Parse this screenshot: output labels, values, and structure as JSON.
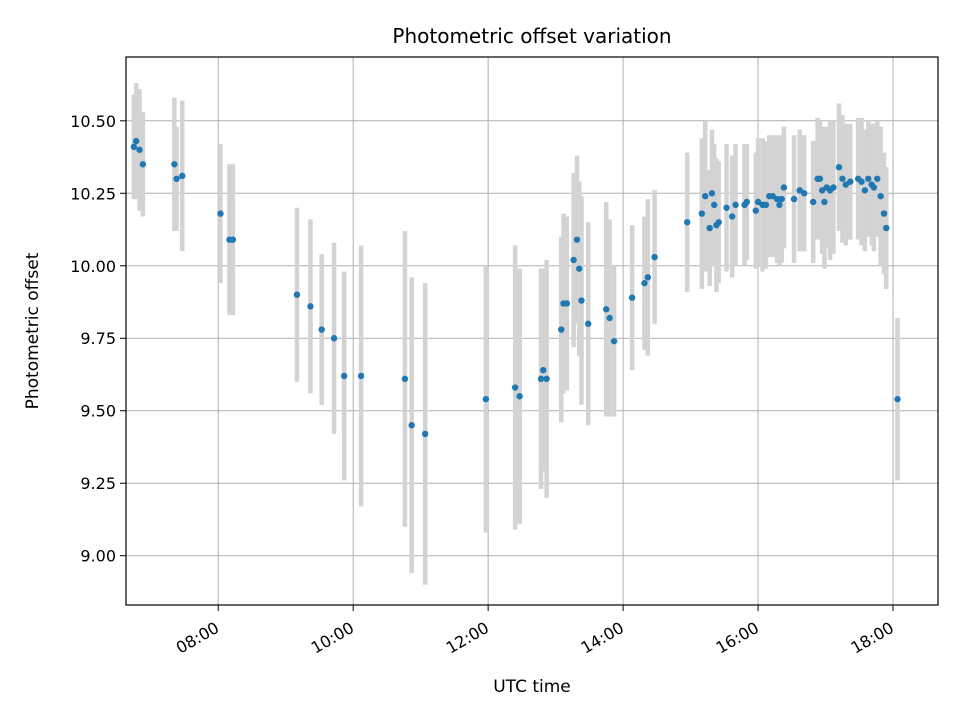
{
  "chart_data": {
    "type": "scatter",
    "title": "Photometric offset variation",
    "xlabel": "UTC time",
    "ylabel": "Photometric offset",
    "xlim": [
      "06:38",
      "18:40"
    ],
    "ylim": [
      8.83,
      10.72
    ],
    "x_ticks": [
      "08:00",
      "10:00",
      "12:00",
      "14:00",
      "16:00",
      "18:00"
    ],
    "y_ticks": [
      "9.00",
      "9.25",
      "9.50",
      "9.75",
      "10.00",
      "10.25",
      "10.50"
    ],
    "grid": true,
    "colors": {
      "marker": "#1f77b4",
      "errorbar": "#d3d3d3",
      "grid": "#b0b0b0"
    },
    "points": [
      {
        "x": "06:45",
        "y": 10.41,
        "err": 0.18
      },
      {
        "x": "06:47",
        "y": 10.43,
        "err": 0.2
      },
      {
        "x": "06:50",
        "y": 10.4,
        "err": 0.21
      },
      {
        "x": "06:53",
        "y": 10.35,
        "err": 0.18
      },
      {
        "x": "07:21",
        "y": 10.35,
        "err": 0.23
      },
      {
        "x": "07:23",
        "y": 10.3,
        "err": 0.18
      },
      {
        "x": "07:28",
        "y": 10.31,
        "err": 0.26
      },
      {
        "x": "08:02",
        "y": 10.18,
        "err": 0.24
      },
      {
        "x": "08:10",
        "y": 10.09,
        "err": 0.26
      },
      {
        "x": "08:13",
        "y": 10.09,
        "err": 0.26
      },
      {
        "x": "09:10",
        "y": 9.9,
        "err": 0.3
      },
      {
        "x": "09:22",
        "y": 9.86,
        "err": 0.3
      },
      {
        "x": "09:32",
        "y": 9.78,
        "err": 0.26
      },
      {
        "x": "09:43",
        "y": 9.75,
        "err": 0.33
      },
      {
        "x": "09:52",
        "y": 9.62,
        "err": 0.36
      },
      {
        "x": "10:07",
        "y": 9.62,
        "err": 0.45
      },
      {
        "x": "10:46",
        "y": 9.61,
        "err": 0.51
      },
      {
        "x": "10:52",
        "y": 9.45,
        "err": 0.51
      },
      {
        "x": "11:04",
        "y": 9.42,
        "err": 0.52
      },
      {
        "x": "11:58",
        "y": 9.54,
        "err": 0.46
      },
      {
        "x": "12:24",
        "y": 9.58,
        "err": 0.49
      },
      {
        "x": "12:28",
        "y": 9.55,
        "err": 0.44
      },
      {
        "x": "12:47",
        "y": 9.61,
        "err": 0.38
      },
      {
        "x": "12:49",
        "y": 9.64,
        "err": 0.35
      },
      {
        "x": "12:52",
        "y": 9.61,
        "err": 0.41
      },
      {
        "x": "13:05",
        "y": 9.78,
        "err": 0.32
      },
      {
        "x": "13:07",
        "y": 9.87,
        "err": 0.31
      },
      {
        "x": "13:10",
        "y": 9.87,
        "err": 0.3
      },
      {
        "x": "13:16",
        "y": 10.02,
        "err": 0.3
      },
      {
        "x": "13:19",
        "y": 10.09,
        "err": 0.29
      },
      {
        "x": "13:21",
        "y": 9.99,
        "err": 0.3
      },
      {
        "x": "13:23",
        "y": 9.88,
        "err": 0.36
      },
      {
        "x": "13:29",
        "y": 9.8,
        "err": 0.35
      },
      {
        "x": "13:45",
        "y": 9.85,
        "err": 0.37
      },
      {
        "x": "13:48",
        "y": 9.82,
        "err": 0.34
      },
      {
        "x": "13:52",
        "y": 9.74,
        "err": 0.26
      },
      {
        "x": "14:08",
        "y": 9.89,
        "err": 0.25
      },
      {
        "x": "14:19",
        "y": 9.94,
        "err": 0.23
      },
      {
        "x": "14:22",
        "y": 9.96,
        "err": 0.27
      },
      {
        "x": "14:28",
        "y": 10.03,
        "err": 0.23
      },
      {
        "x": "14:57",
        "y": 10.15,
        "err": 0.24
      },
      {
        "x": "15:10",
        "y": 10.18,
        "err": 0.26
      },
      {
        "x": "15:13",
        "y": 10.24,
        "err": 0.26
      },
      {
        "x": "15:17",
        "y": 10.13,
        "err": 0.2
      },
      {
        "x": "15:19",
        "y": 10.25,
        "err": 0.22
      },
      {
        "x": "15:21",
        "y": 10.21,
        "err": 0.21
      },
      {
        "x": "15:23",
        "y": 10.14,
        "err": 0.23
      },
      {
        "x": "15:25",
        "y": 10.15,
        "err": 0.21
      },
      {
        "x": "15:32",
        "y": 10.2,
        "err": 0.22
      },
      {
        "x": "15:37",
        "y": 10.17,
        "err": 0.21
      },
      {
        "x": "15:40",
        "y": 10.21,
        "err": 0.21
      },
      {
        "x": "15:48",
        "y": 10.21,
        "err": 0.21
      },
      {
        "x": "15:50",
        "y": 10.22,
        "err": 0.2
      },
      {
        "x": "15:58",
        "y": 10.19,
        "err": 0.2
      },
      {
        "x": "16:00",
        "y": 10.22,
        "err": 0.22
      },
      {
        "x": "16:04",
        "y": 10.21,
        "err": 0.23
      },
      {
        "x": "16:07",
        "y": 10.21,
        "err": 0.22
      },
      {
        "x": "16:10",
        "y": 10.24,
        "err": 0.21
      },
      {
        "x": "16:13",
        "y": 10.24,
        "err": 0.21
      },
      {
        "x": "16:17",
        "y": 10.23,
        "err": 0.22
      },
      {
        "x": "16:19",
        "y": 10.21,
        "err": 0.21
      },
      {
        "x": "16:21",
        "y": 10.23,
        "err": 0.22
      },
      {
        "x": "16:23",
        "y": 10.27,
        "err": 0.21
      },
      {
        "x": "16:32",
        "y": 10.23,
        "err": 0.22
      },
      {
        "x": "16:37",
        "y": 10.26,
        "err": 0.21
      },
      {
        "x": "16:41",
        "y": 10.25,
        "err": 0.2
      },
      {
        "x": "16:49",
        "y": 10.22,
        "err": 0.21
      },
      {
        "x": "16:53",
        "y": 10.3,
        "err": 0.21
      },
      {
        "x": "16:55",
        "y": 10.3,
        "err": 0.2
      },
      {
        "x": "16:57",
        "y": 10.26,
        "err": 0.22
      },
      {
        "x": "16:59",
        "y": 10.22,
        "err": 0.23
      },
      {
        "x": "17:01",
        "y": 10.27,
        "err": 0.21
      },
      {
        "x": "17:04",
        "y": 10.26,
        "err": 0.24
      },
      {
        "x": "17:07",
        "y": 10.27,
        "err": 0.23
      },
      {
        "x": "17:12",
        "y": 10.34,
        "err": 0.22
      },
      {
        "x": "17:15",
        "y": 10.3,
        "err": 0.22
      },
      {
        "x": "17:18",
        "y": 10.28,
        "err": 0.21
      },
      {
        "x": "17:22",
        "y": 10.29,
        "err": 0.2
      },
      {
        "x": "17:29",
        "y": 10.3,
        "err": 0.21
      },
      {
        "x": "17:32",
        "y": 10.29,
        "err": 0.22
      },
      {
        "x": "17:35",
        "y": 10.26,
        "err": 0.21
      },
      {
        "x": "17:38",
        "y": 10.3,
        "err": 0.2
      },
      {
        "x": "17:41",
        "y": 10.28,
        "err": 0.21
      },
      {
        "x": "17:43",
        "y": 10.27,
        "err": 0.22
      },
      {
        "x": "17:46",
        "y": 10.3,
        "err": 0.2
      },
      {
        "x": "17:49",
        "y": 10.24,
        "err": 0.24
      },
      {
        "x": "17:52",
        "y": 10.18,
        "err": 0.21
      },
      {
        "x": "17:54",
        "y": 10.13,
        "err": 0.21
      },
      {
        "x": "18:04",
        "y": 9.54,
        "err": 0.28
      }
    ]
  }
}
